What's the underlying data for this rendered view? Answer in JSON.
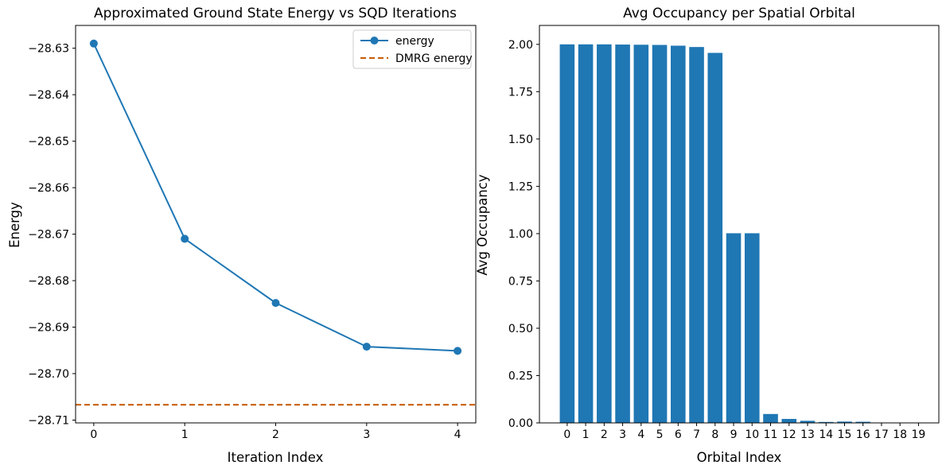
{
  "figure": {
    "background": "#ffffff",
    "axis_color": "#000000",
    "text_color": "#000000"
  },
  "chart_data": [
    {
      "type": "line",
      "title": "Approximated Ground State Energy vs SQD Iterations",
      "xlabel": "Iteration Index",
      "ylabel": "Energy",
      "x": [
        0,
        1,
        2,
        3,
        4
      ],
      "xtick_labels": [
        "0",
        "1",
        "2",
        "3",
        "4"
      ],
      "xlim": [
        -0.2,
        4.2
      ],
      "ylim": [
        -28.7106,
        -28.6251
      ],
      "ytick_values": [
        -28.63,
        -28.64,
        -28.65,
        -28.66,
        -28.67,
        -28.68,
        -28.69,
        -28.7,
        -28.71
      ],
      "ytick_labels": [
        "−28.63",
        "−28.64",
        "−28.65",
        "−28.66",
        "−28.67",
        "−28.68",
        "−28.69",
        "−28.70",
        "−28.71"
      ],
      "series": [
        {
          "name": "energy",
          "color": "#1f77b4",
          "marker": "circle",
          "line_style": "solid",
          "values": [
            -28.629,
            -28.671,
            -28.6848,
            -28.6942,
            -28.6951
          ]
        }
      ],
      "hline": {
        "name": "DMRG energy",
        "value": -28.7067,
        "color": "#c8610e",
        "line_style": "dashed"
      },
      "legend": {
        "position": "upper right",
        "entries": [
          {
            "label": "energy",
            "style": "line-marker",
            "color": "#1f77b4"
          },
          {
            "label": "DMRG energy",
            "style": "dashed-line",
            "color": "#c8610e"
          }
        ]
      },
      "grid": false
    },
    {
      "type": "bar",
      "title": "Avg Occupancy per Spatial Orbital",
      "xlabel": "Orbital Index",
      "ylabel": "Avg Occupancy",
      "categories": [
        "0",
        "1",
        "2",
        "3",
        "4",
        "5",
        "6",
        "7",
        "8",
        "9",
        "10",
        "11",
        "12",
        "13",
        "14",
        "15",
        "16",
        "17",
        "18",
        "19"
      ],
      "values": [
        2.0,
        2.0,
        2.0,
        1.999,
        1.998,
        1.997,
        1.993,
        1.986,
        1.955,
        1.002,
        1.002,
        0.047,
        0.021,
        0.011,
        0.005,
        0.007,
        0.006,
        0.001,
        0.001,
        0.0
      ],
      "bar_color": "#1f77b4",
      "bar_width_fraction": 0.8,
      "xlim": [
        -1.5,
        20.1
      ],
      "ylim": [
        0,
        2.1
      ],
      "ytick_values": [
        0.0,
        0.25,
        0.5,
        0.75,
        1.0,
        1.25,
        1.5,
        1.75,
        2.0
      ],
      "ytick_labels": [
        "0.00",
        "0.25",
        "0.50",
        "0.75",
        "1.00",
        "1.25",
        "1.50",
        "1.75",
        "2.00"
      ],
      "grid": false
    }
  ]
}
